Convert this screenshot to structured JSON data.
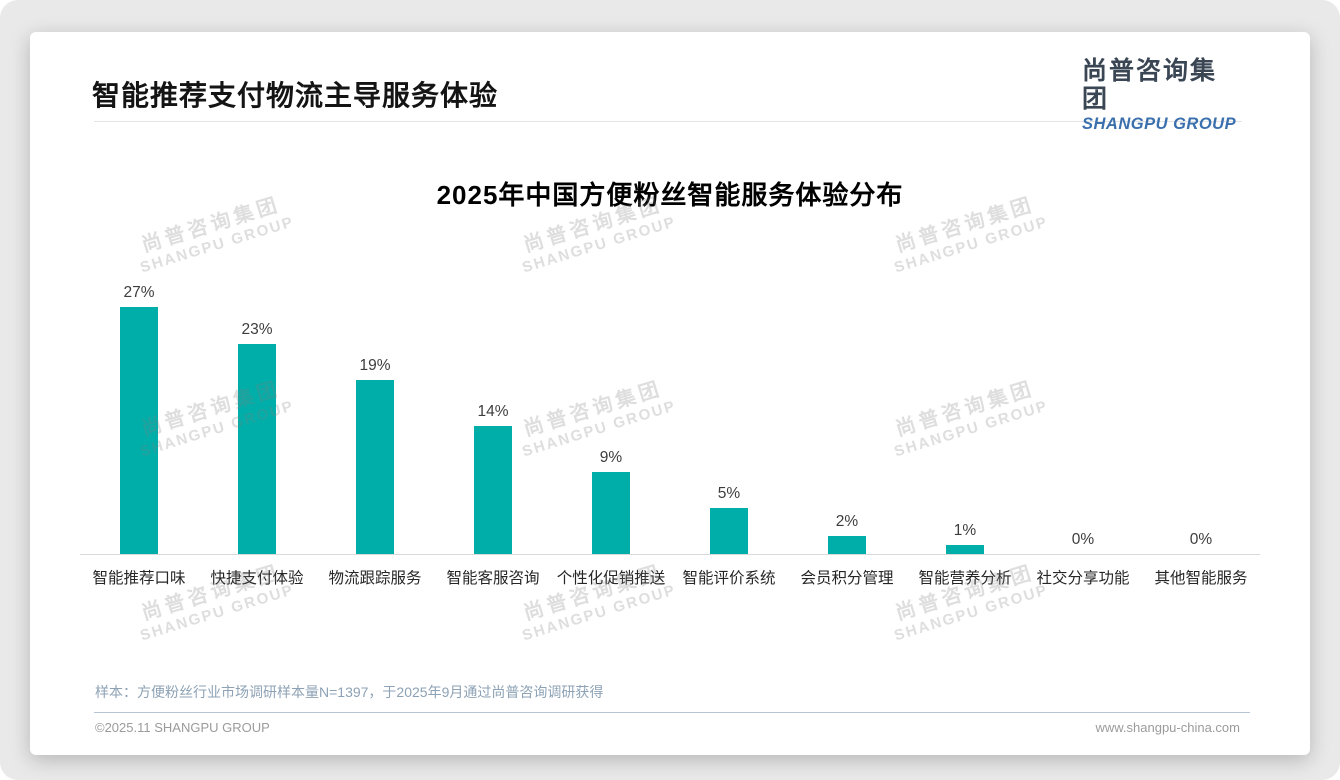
{
  "page": {
    "title": "智能推荐支付物流主导服务体验",
    "logo": {
      "cn": "尚普咨询集团",
      "en": "SHANGPU GROUP"
    },
    "watermark": {
      "cn": "尚普咨询集团",
      "en": "SHANGPU GROUP"
    },
    "footer": {
      "note": "样本：方便粉丝行业市场调研样本量N=1397，于2025年9月通过尚普咨询调研获得",
      "copyright": "©2025.11 SHANGPU GROUP",
      "website": "www.shangpu-china.com"
    },
    "colors": {
      "bar": "#00AEA9",
      "logo_en_blue": "#3a70ad",
      "note_blue_gray": "#8da2b5"
    }
  },
  "chart_data": {
    "type": "bar",
    "title": "2025年中国方便粉丝智能服务体验分布",
    "categories": [
      "智能推荐口味",
      "快捷支付体验",
      "物流跟踪服务",
      "智能客服咨询",
      "个性化促销推送",
      "智能评价系统",
      "会员积分管理",
      "智能营养分析",
      "社交分享功能",
      "其他智能服务"
    ],
    "values": [
      27,
      23,
      19,
      14,
      9,
      5,
      2,
      1,
      0,
      0
    ],
    "value_labels": [
      "27%",
      "23%",
      "19%",
      "14%",
      "9%",
      "5%",
      "2%",
      "1%",
      "0%",
      "0%"
    ],
    "xlabel": "",
    "ylabel": "",
    "ylim": [
      0,
      30
    ],
    "grid": false,
    "legend": false,
    "bar_color": "#00AEA9"
  }
}
